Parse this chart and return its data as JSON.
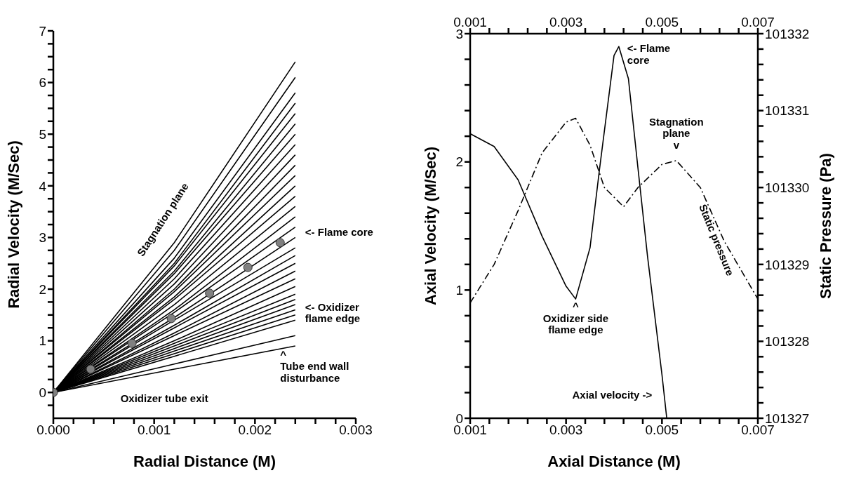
{
  "chart_data": [
    {
      "type": "line",
      "xlabel": "Radial Distance (M)",
      "ylabel": "Radial Velocity (M/Sec)",
      "xlim": [
        0,
        0.003
      ],
      "ylim": [
        -0.5,
        7
      ],
      "xticks": [
        {
          "value": 0,
          "label": "0.000"
        },
        {
          "value": 0.0002,
          "label": null
        },
        {
          "value": 0.0004,
          "label": null
        },
        {
          "value": 0.0006,
          "label": null
        },
        {
          "value": 0.0008,
          "label": null
        },
        {
          "value": 0.001,
          "label": "0.001"
        },
        {
          "value": 0.0012,
          "label": null
        },
        {
          "value": 0.0014,
          "label": null
        },
        {
          "value": 0.0016,
          "label": null
        },
        {
          "value": 0.0018,
          "label": null
        },
        {
          "value": 0.002,
          "label": "0.002"
        },
        {
          "value": 0.0022,
          "label": null
        },
        {
          "value": 0.0024,
          "label": null
        },
        {
          "value": 0.0026,
          "label": null
        },
        {
          "value": 0.0028,
          "label": null
        },
        {
          "value": 0.003,
          "label": "0.003"
        }
      ],
      "yticks": [
        {
          "value": -0.25,
          "label": null
        },
        0,
        {
          "value": 0.25,
          "label": null
        },
        {
          "value": 0.5,
          "label": null
        },
        {
          "value": 0.75,
          "label": null
        },
        1,
        {
          "value": 1.25,
          "label": null
        },
        {
          "value": 1.5,
          "label": null
        },
        {
          "value": 1.75,
          "label": null
        },
        2,
        {
          "value": 2.25,
          "label": null
        },
        {
          "value": 2.5,
          "label": null
        },
        {
          "value": 2.75,
          "label": null
        },
        3,
        {
          "value": 3.25,
          "label": null
        },
        {
          "value": 3.5,
          "label": null
        },
        {
          "value": 3.75,
          "label": null
        },
        4,
        {
          "value": 4.25,
          "label": null
        },
        {
          "value": 4.5,
          "label": null
        },
        {
          "value": 4.75,
          "label": null
        },
        5,
        {
          "value": 5.25,
          "label": null
        },
        {
          "value": 5.5,
          "label": null
        },
        {
          "value": 5.75,
          "label": null
        },
        6,
        {
          "value": 6.25,
          "label": null
        },
        {
          "value": 6.5,
          "label": null
        },
        {
          "value": 6.75,
          "label": null
        },
        7
      ],
      "marker": "none",
      "line_style": "solid",
      "x": [
        0,
        0.0012,
        0.0024
      ],
      "series": [
        {
          "color": "#000000",
          "values": [
            0,
            2.9,
            6.4
          ]
        },
        {
          "color": "#000000",
          "values": [
            0,
            2.75,
            6.1
          ]
        },
        {
          "color": "#000000",
          "values": [
            0,
            2.6,
            5.8
          ]
        },
        {
          "color": "#000000",
          "values": [
            0,
            2.5,
            5.6
          ]
        },
        {
          "color": "#000000",
          "values": [
            0,
            2.45,
            5.4
          ]
        },
        {
          "color": "#000000",
          "values": [
            0,
            2.35,
            5.2
          ]
        },
        {
          "color": "#000000",
          "values": [
            0,
            2.3,
            5.0
          ]
        },
        {
          "color": "#000000",
          "values": [
            0,
            2.2,
            4.8
          ]
        },
        {
          "color": "#000000",
          "values": [
            0,
            2.1,
            4.6
          ]
        },
        {
          "color": "#000000",
          "values": [
            0,
            2.0,
            4.4
          ]
        },
        {
          "color": "#000000",
          "values": [
            0,
            1.95,
            4.2
          ]
        },
        {
          "color": "#000000",
          "values": [
            0,
            1.85,
            4.0
          ]
        },
        {
          "color": "#000000",
          "values": [
            0,
            1.8,
            3.8
          ]
        },
        {
          "color": "#000000",
          "values": [
            0,
            1.7,
            3.6
          ]
        },
        {
          "color": "#000000",
          "values": [
            0,
            1.6,
            3.4
          ]
        },
        {
          "color": "#000000",
          "values": [
            0,
            1.55,
            3.2
          ]
        },
        {
          "color": "#000000",
          "values": [
            0,
            1.45,
            3.0
          ]
        },
        {
          "color": "#000000",
          "values": [
            0,
            1.4,
            2.8
          ]
        },
        {
          "color": "#000000",
          "values": [
            0,
            1.3,
            2.65
          ]
        },
        {
          "color": "#000000",
          "values": [
            0,
            1.25,
            2.5
          ]
        },
        {
          "color": "#000000",
          "values": [
            0,
            1.15,
            2.35
          ]
        },
        {
          "color": "#000000",
          "values": [
            0,
            1.1,
            2.2
          ]
        },
        {
          "color": "#000000",
          "values": [
            0,
            1.0,
            2.05
          ]
        },
        {
          "color": "#000000",
          "values": [
            0,
            0.95,
            1.9
          ]
        },
        {
          "color": "#000000",
          "values": [
            0,
            0.9,
            1.8
          ]
        },
        {
          "color": "#000000",
          "values": [
            0,
            0.85,
            1.7
          ]
        },
        {
          "color": "#000000",
          "values": [
            0,
            0.8,
            1.6
          ]
        },
        {
          "color": "#000000",
          "values": [
            0,
            0.75,
            1.5
          ]
        },
        {
          "color": "#000000",
          "values": [
            0,
            0.7,
            1.4
          ]
        },
        {
          "color": "#000000",
          "values": [
            0,
            0.55,
            1.1
          ]
        },
        {
          "color": "#000000",
          "values": [
            0,
            0.45,
            0.9
          ]
        },
        {
          "type": "scatter",
          "marker": "circle",
          "color": "#808080",
          "x": [
            0,
            0.00037,
            0.00078,
            0.00117,
            0.00155,
            0.00193,
            0.00225
          ],
          "values": [
            0,
            0.45,
            0.95,
            1.43,
            1.92,
            2.42,
            2.9
          ]
        }
      ],
      "annotations": [
        {
          "text": "Stagnation plane",
          "x": 0.0012,
          "y": 2.9
        },
        "<- Flame core",
        {
          "text": "<- Oxidizer\nflame edge",
          "x": 0.0024,
          "y": 1.65
        },
        {
          "text": "^\nTube end wall\ndisturbance",
          "x": 0.00232,
          "y": 0.85
        },
        "Oxidizer tube exit"
      ]
    },
    {
      "type": "line",
      "xlabel": "Axial Distance (M)",
      "ylabel": "Axial Velocity (M/Sec)",
      "y2label": "Static Pressure (Pa)",
      "xlim": [
        0.001,
        0.007
      ],
      "x2lim": [
        0.001,
        0.007
      ],
      "ylim": [
        0,
        3
      ],
      "y2lim": [
        101327,
        101332
      ],
      "xticks": [
        0.001,
        {
          "value": 0.0014,
          "label": null
        },
        {
          "value": 0.0018,
          "label": null
        },
        {
          "value": 0.0022,
          "label": null
        },
        {
          "value": 0.0026,
          "label": null
        },
        0.003,
        {
          "value": 0.0034,
          "label": null
        },
        {
          "value": 0.0038,
          "label": null
        },
        {
          "value": 0.0042,
          "label": null
        },
        {
          "value": 0.0046,
          "label": null
        },
        0.005,
        {
          "value": 0.0054,
          "label": null
        },
        {
          "value": 0.0058,
          "label": null
        },
        {
          "value": 0.0062,
          "label": null
        },
        {
          "value": 0.0066,
          "label": null
        },
        0.007
      ],
      "x2ticks": [
        0.001,
        {
          "value": 0.0014,
          "label": null
        },
        {
          "value": 0.0018,
          "label": null
        },
        {
          "value": 0.0022,
          "label": null
        },
        {
          "value": 0.0026,
          "label": null
        },
        0.003,
        {
          "value": 0.0034,
          "label": null
        },
        {
          "value": 0.0038,
          "label": null
        },
        {
          "value": 0.0042,
          "label": null
        },
        {
          "value": 0.0046,
          "label": null
        },
        0.005,
        {
          "value": 0.0054,
          "label": null
        },
        {
          "value": 0.0058,
          "label": null
        },
        {
          "value": 0.0062,
          "label": null
        },
        {
          "value": 0.0066,
          "label": null
        },
        0.007
      ],
      "yticks": [
        0,
        {
          "value": 0.2,
          "label": null
        },
        {
          "value": 0.4,
          "label": null
        },
        {
          "value": 0.6,
          "label": null
        },
        {
          "value": 0.8,
          "label": null
        },
        1,
        {
          "value": 1.2,
          "label": null
        },
        {
          "value": 1.4,
          "label": null
        },
        {
          "value": 1.6,
          "label": null
        },
        {
          "value": 1.8,
          "label": null
        },
        2,
        {
          "value": 2.2,
          "label": null
        },
        {
          "value": 2.4,
          "label": null
        },
        {
          "value": 2.6,
          "label": null
        },
        {
          "value": 2.8,
          "label": null
        },
        3
      ],
      "y2ticks": [
        101327,
        {
          "value": 101327.2,
          "label": null
        },
        {
          "value": 101327.4,
          "label": null
        },
        {
          "value": 101327.6,
          "label": null
        },
        {
          "value": 101327.8,
          "label": null
        },
        101328,
        {
          "value": 101328.2,
          "label": null
        },
        {
          "value": 101328.4,
          "label": null
        },
        {
          "value": 101328.6,
          "label": null
        },
        {
          "value": 101328.8,
          "label": null
        },
        101329,
        {
          "value": 101329.2,
          "label": null
        },
        {
          "value": 101329.4,
          "label": null
        },
        {
          "value": 101329.6,
          "label": null
        },
        {
          "value": 101329.8,
          "label": null
        },
        101330,
        {
          "value": 101330.2,
          "label": null
        },
        {
          "value": 101330.4,
          "label": null
        },
        {
          "value": 101330.6,
          "label": null
        },
        {
          "value": 101330.8,
          "label": null
        },
        101331,
        {
          "value": 101331.2,
          "label": null
        },
        {
          "value": 101331.4,
          "label": null
        },
        {
          "value": 101331.6,
          "label": null
        },
        {
          "value": 101331.8,
          "label": null
        },
        101332
      ],
      "marker": "none",
      "series": [
        {
          "name": "Axial velocity ->",
          "color": "#000000",
          "line_style": "solid",
          "x": [
            0.001,
            0.0015,
            0.002,
            0.0025,
            0.003,
            0.0032,
            0.0035,
            0.0037,
            0.004,
            0.0041,
            0.0043,
            0.0045,
            0.0047,
            0.005,
            0.0051
          ],
          "values": [
            2.22,
            2.12,
            1.86,
            1.42,
            1.03,
            0.93,
            1.33,
            1.95,
            2.83,
            2.9,
            2.65,
            1.95,
            1.26,
            0.34,
            0
          ]
        },
        {
          "name": "Static pressure",
          "color": "#000000",
          "line_style": "dashed",
          "axis": "y2",
          "x": [
            0.001,
            0.0015,
            0.002,
            0.0025,
            0.003,
            0.0032,
            0.0035,
            0.0038,
            0.0042,
            0.0045,
            0.005,
            0.0053,
            0.0058,
            0.0063,
            0.007
          ],
          "values": [
            101328.5,
            101329,
            101329.7,
            101330.45,
            101330.85,
            101330.9,
            101330.55,
            101330,
            101329.75,
            101330,
            101330.3,
            101330.35,
            101330,
            101329.3,
            101328.55
          ]
        }
      ],
      "annotations": [
        {
          "text": "<- Flame\ncore",
          "x": 0.0041,
          "y": 2.9
        },
        {
          "text": "Stagnation\nplane\nv",
          "x": 0.0053,
          "y": 2.0
        },
        {
          "text": "^\nOxidizer side\nflame edge",
          "x": 0.0032,
          "y": 0.93
        }
      ]
    }
  ]
}
